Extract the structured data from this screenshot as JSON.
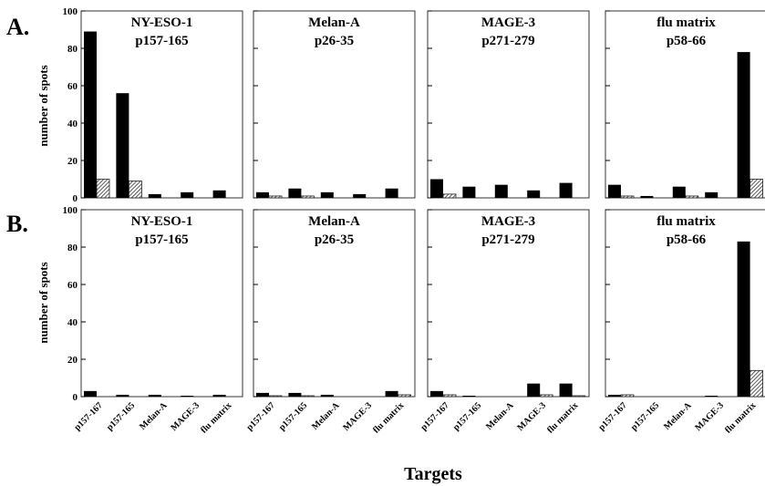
{
  "figure": {
    "rows": [
      {
        "label": "A."
      },
      {
        "label": "B."
      }
    ],
    "ylabel": "number of spots",
    "xlabel": "Targets",
    "yticks": [
      0,
      20,
      40,
      60,
      80,
      100
    ],
    "categories": [
      "p157-167",
      "p157-165",
      "Melan-A",
      "MAGE-3",
      "flu matrix"
    ],
    "colors": {
      "solid": "#000000",
      "hatched": "#555555",
      "frame": "#333333"
    }
  },
  "chart_data": [
    {
      "type": "bar",
      "row": "A.",
      "title": [
        "NY-ESO-1",
        "p157-165"
      ],
      "ylim": [
        0,
        100
      ],
      "categories": [
        "p157-167",
        "p157-165",
        "Melan-A",
        "MAGE-3",
        "flu matrix"
      ],
      "series": [
        {
          "values": [
            89,
            56,
            2,
            3,
            4
          ]
        },
        {
          "values": [
            10,
            9,
            0,
            0,
            0
          ]
        }
      ]
    },
    {
      "type": "bar",
      "row": "A.",
      "title": [
        "Melan-A",
        "p26-35"
      ],
      "ylim": [
        0,
        100
      ],
      "categories": [
        "p157-167",
        "p157-165",
        "Melan-A",
        "MAGE-3",
        "flu matrix"
      ],
      "series": [
        {
          "values": [
            3,
            5,
            3,
            2,
            5
          ]
        },
        {
          "values": [
            1,
            1,
            0,
            0,
            0
          ]
        }
      ]
    },
    {
      "type": "bar",
      "row": "A.",
      "title": [
        "MAGE-3",
        "p271-279"
      ],
      "ylim": [
        0,
        100
      ],
      "categories": [
        "p157-167",
        "p157-165",
        "Melan-A",
        "MAGE-3",
        "flu matrix"
      ],
      "series": [
        {
          "values": [
            10,
            6,
            7,
            4,
            8
          ]
        },
        {
          "values": [
            2,
            0,
            0,
            0,
            0
          ]
        }
      ]
    },
    {
      "type": "bar",
      "row": "A.",
      "title": [
        "flu matrix",
        "p58-66"
      ],
      "ylim": [
        0,
        100
      ],
      "categories": [
        "p157-167",
        "p157-165",
        "Melan-A",
        "MAGE-3",
        "flu matrix"
      ],
      "series": [
        {
          "values": [
            7,
            1,
            6,
            3,
            78
          ]
        },
        {
          "values": [
            1,
            0,
            1,
            0,
            10
          ]
        }
      ]
    },
    {
      "type": "bar",
      "row": "B.",
      "title": [
        "NY-ESO-1",
        "p157-165"
      ],
      "ylim": [
        0,
        100
      ],
      "categories": [
        "p157-167",
        "p157-165",
        "Melan-A",
        "MAGE-3",
        "flu matrix"
      ],
      "series": [
        {
          "values": [
            3,
            1,
            1,
            0.5,
            1
          ]
        },
        {
          "values": [
            0,
            0,
            0,
            0,
            0
          ]
        }
      ]
    },
    {
      "type": "bar",
      "row": "B.",
      "title": [
        "Melan-A",
        "p26-35"
      ],
      "ylim": [
        0,
        100
      ],
      "categories": [
        "p157-167",
        "p157-165",
        "Melan-A",
        "MAGE-3",
        "flu matrix"
      ],
      "series": [
        {
          "values": [
            2,
            2,
            1,
            0,
            3
          ]
        },
        {
          "values": [
            0.5,
            0.5,
            0,
            0,
            1
          ]
        }
      ]
    },
    {
      "type": "bar",
      "row": "B.",
      "title": [
        "MAGE-3",
        "p271-279"
      ],
      "ylim": [
        0,
        100
      ],
      "categories": [
        "p157-167",
        "p157-165",
        "Melan-A",
        "MAGE-3",
        "flu matrix"
      ],
      "series": [
        {
          "values": [
            3,
            0.5,
            0,
            7,
            7
          ]
        },
        {
          "values": [
            1,
            0,
            0,
            1,
            0.5
          ]
        }
      ]
    },
    {
      "type": "bar",
      "row": "B.",
      "title": [
        "flu matrix",
        "p58-66"
      ],
      "ylim": [
        0,
        100
      ],
      "categories": [
        "p157-167",
        "p157-165",
        "Melan-A",
        "MAGE-3",
        "flu matrix"
      ],
      "series": [
        {
          "values": [
            1,
            0,
            0,
            0.5,
            83
          ]
        },
        {
          "values": [
            1,
            0,
            0,
            0,
            14
          ]
        }
      ]
    }
  ]
}
